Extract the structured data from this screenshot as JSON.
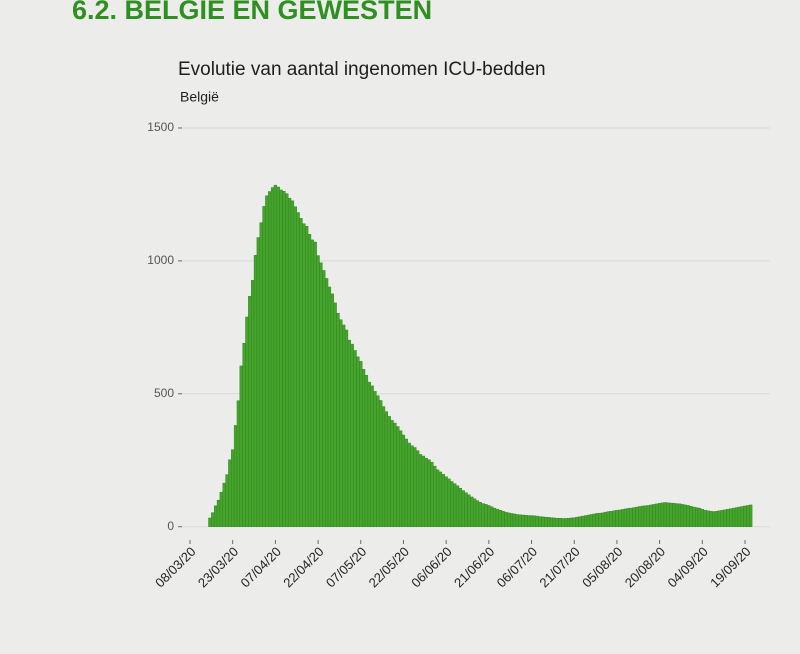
{
  "heading": "6.2. BELGIË EN GEWESTEN",
  "chart_data": {
    "type": "bar",
    "title": "Evolutie van aantal ingenomen ICU-bedden",
    "subtitle": "België",
    "color": "#45a42c",
    "grid": true,
    "ylim": [
      -50,
      1530
    ],
    "yticks": [
      0,
      500,
      1000,
      1500
    ],
    "categories": [
      "08/03/20",
      null,
      null,
      null,
      null,
      null,
      null,
      null,
      null,
      null,
      null,
      null,
      null,
      null,
      null,
      "23/03/20",
      null,
      null,
      null,
      null,
      null,
      null,
      null,
      null,
      null,
      null,
      null,
      null,
      null,
      null,
      "07/04/20",
      null,
      null,
      null,
      null,
      null,
      null,
      null,
      null,
      null,
      null,
      null,
      null,
      null,
      null,
      "22/04/20",
      null,
      null,
      null,
      null,
      null,
      null,
      null,
      null,
      null,
      null,
      null,
      null,
      null,
      null,
      "07/05/20",
      null,
      null,
      null,
      null,
      null,
      null,
      null,
      null,
      null,
      null,
      null,
      null,
      null,
      null,
      "22/05/20",
      null,
      null,
      null,
      null,
      null,
      null,
      null,
      null,
      null,
      null,
      null,
      null,
      null,
      null,
      "06/06/20",
      null,
      null,
      null,
      null,
      null,
      null,
      null,
      null,
      null,
      null,
      null,
      null,
      null,
      null,
      "21/06/20",
      null,
      null,
      null,
      null,
      null,
      null,
      null,
      null,
      null,
      null,
      null,
      null,
      null,
      null,
      "06/07/20",
      null,
      null,
      null,
      null,
      null,
      null,
      null,
      null,
      null,
      null,
      null,
      null,
      null,
      null,
      "21/07/20",
      null,
      null,
      null,
      null,
      null,
      null,
      null,
      null,
      null,
      null,
      null,
      null,
      null,
      null,
      "05/08/20",
      null,
      null,
      null,
      null,
      null,
      null,
      null,
      null,
      null,
      null,
      null,
      null,
      null,
      null,
      "20/08/20",
      null,
      null,
      null,
      null,
      null,
      null,
      null,
      null,
      null,
      null,
      null,
      null,
      null,
      null,
      "04/09/20",
      null,
      null,
      null,
      null,
      null,
      null,
      null,
      null,
      null,
      null,
      null,
      null,
      null,
      null,
      "19/09/20",
      null,
      null
    ],
    "values": [
      null,
      null,
      null,
      null,
      null,
      null,
      null,
      33,
      53,
      79,
      100,
      130,
      164,
      196,
      252,
      290,
      381,
      474,
      605,
      690,
      789,
      867,
      927,
      1021,
      1088,
      1144,
      1205,
      1245,
      1261,
      1276,
      1285,
      1278,
      1267,
      1262,
      1253,
      1236,
      1226,
      1204,
      1182,
      1160,
      1140,
      1130,
      1100,
      1079,
      1071,
      1020,
      993,
      964,
      934,
      902,
      876,
      842,
      803,
      779,
      759,
      740,
      702,
      687,
      663,
      639,
      622,
      592,
      570,
      544,
      530,
      509,
      493,
      475,
      452,
      433,
      415,
      400,
      390,
      377,
      361,
      345,
      330,
      315,
      305,
      298,
      286,
      272,
      266,
      258,
      252,
      243,
      228,
      214,
      206,
      197,
      188,
      180,
      170,
      162,
      154,
      145,
      136,
      128,
      120,
      112,
      105,
      98,
      92,
      87,
      84,
      80,
      75,
      70,
      66,
      62,
      58,
      55,
      52,
      50,
      48,
      46,
      45,
      44,
      43,
      42,
      42,
      41,
      40,
      38,
      37,
      36,
      35,
      34,
      33,
      32,
      32,
      31,
      31,
      32,
      33,
      34,
      36,
      38,
      40,
      42,
      44,
      46,
      48,
      50,
      51,
      52,
      55,
      57,
      58,
      60,
      62,
      63,
      65,
      67,
      69,
      70,
      72,
      74,
      76,
      78,
      79,
      80,
      82,
      84,
      86,
      88,
      90,
      91,
      90,
      89,
      88,
      87,
      86,
      84,
      82,
      80,
      77,
      74,
      72,
      70,
      66,
      62,
      60,
      58,
      57,
      58,
      60,
      62,
      64,
      66,
      68,
      70,
      72,
      74,
      76,
      78,
      80,
      82
    ]
  }
}
